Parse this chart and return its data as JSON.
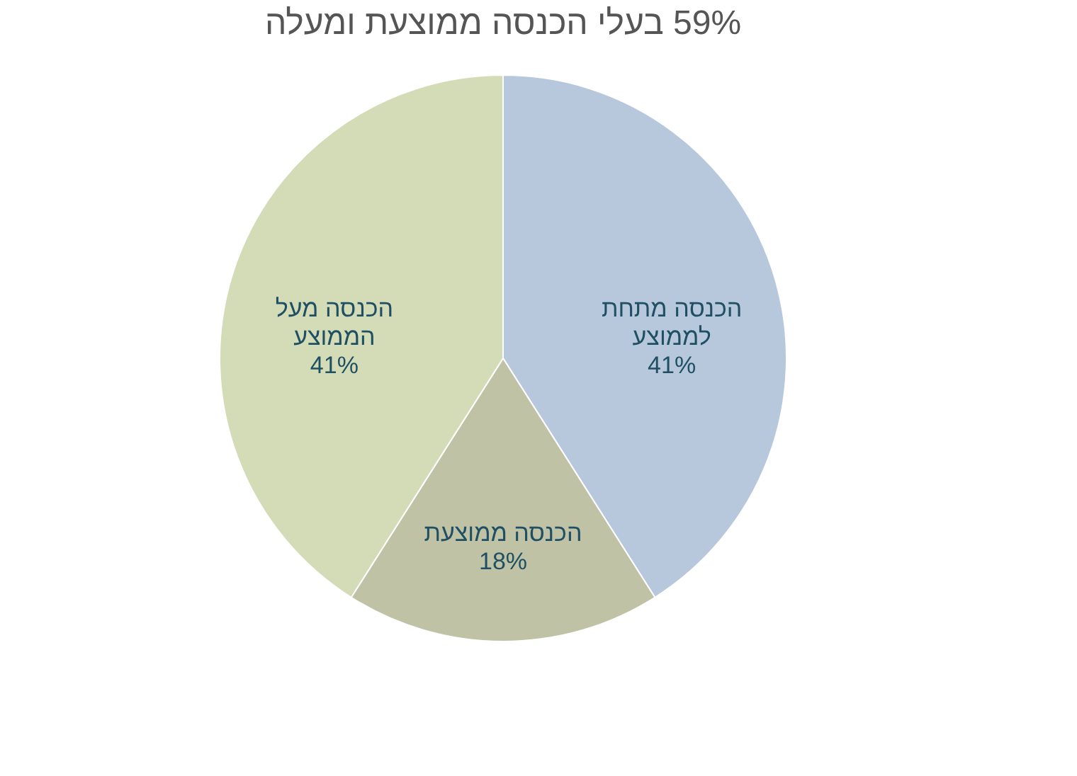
{
  "chart_data": {
    "type": "pie",
    "title": "59% בעלי הכנסה ממוצעת ומעלה",
    "categories": [
      "הכנסה מתחת לממוצע",
      "הכנסה ממוצעת",
      "הכנסה מעל הממוצע"
    ],
    "values": [
      41,
      18,
      41
    ],
    "value_labels": [
      "41%",
      "18%",
      "41%"
    ],
    "colors": [
      "#b8c8dc",
      "#c0c2a6",
      "#d3dcb6"
    ],
    "legend": false
  }
}
